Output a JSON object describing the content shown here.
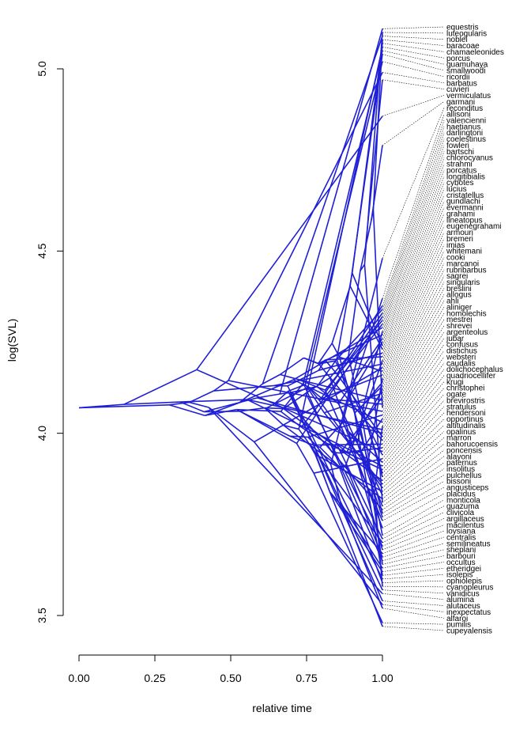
{
  "chart_data": {
    "type": "line",
    "subtype": "phenogram",
    "xlabel": "relative time",
    "ylabel": "log(SVL)",
    "xlim": [
      0,
      1
    ],
    "ylim": [
      3.5,
      5.1
    ],
    "x_ticks": [
      "0.00",
      "0.25",
      "0.50",
      "0.75",
      "1.00"
    ],
    "x_tick_values": [
      0,
      0.25,
      0.5,
      0.75,
      1.0
    ],
    "y_ticks": [
      "3.5",
      "4.0",
      "4.5",
      "5.0"
    ],
    "y_tick_values": [
      3.5,
      4.0,
      4.5,
      5.0
    ],
    "root_value": 4.07,
    "line_color": "#1f1fd6",
    "tip_labels": [
      "equestris",
      "luteogularis",
      "noblei",
      "baracoae",
      "chamaeleonides",
      "porcus",
      "guamuhaya",
      "smallwoodi",
      "ricordii",
      "barbatus",
      "cuvieri",
      "vermiculatus",
      "garmani",
      "reconditus",
      "allisoni",
      "valencienni",
      "haetianus",
      "darlingtoni",
      "coelestinus",
      "fowleri",
      "bartschi",
      "chlorocyanus",
      "strahmi",
      "porcatus",
      "longitibialis",
      "cybotes",
      "lucius",
      "cristatellus",
      "gundlachi",
      "evermanni",
      "grahami",
      "lineatopus",
      "eugenegrahami",
      "armouri",
      "bremeri",
      "imias",
      "whitemani",
      "cooki",
      "marcanoi",
      "rubribarbus",
      "sagrei",
      "singularis",
      "breslini",
      "allogus",
      "ahli",
      "aliniger",
      "homolechis",
      "mestrei",
      "shrevei",
      "argenteolus",
      "jubar",
      "confusus",
      "distichus",
      "websteri",
      "caudalis",
      "dolichocephalus",
      "quadriocellifer",
      "krugi",
      "christophei",
      "ogate",
      "brevirostris",
      "stratulus",
      "hendersoni",
      "opportinus",
      "altitudinalis",
      "opalinus",
      "marron",
      "bahorucoensis",
      "poncensis",
      "alayoni",
      "paternus",
      "insolitus",
      "pulchellus",
      "bissoni",
      "angusticeps",
      "placidus",
      "monticola",
      "guazuma",
      "clivicola",
      "argillaceus",
      "macilentus",
      "loysiana",
      "centralis",
      "semilineatus",
      "sheplani",
      "barbouri",
      "occultus",
      "etheridgei",
      "isolepis",
      "ophiolepis",
      "cyanopleurus",
      "vanidicus",
      "alumina",
      "alutaceus",
      "inexpectatus",
      "alfaroi",
      "pumilis",
      "cupeyalensis"
    ],
    "tip_values": [
      5.11,
      5.1,
      5.09,
      5.08,
      5.07,
      5.06,
      5.05,
      5.04,
      5.02,
      4.99,
      4.97,
      4.87,
      4.79,
      4.48,
      4.37,
      4.35,
      4.34,
      4.33,
      4.32,
      4.31,
      4.3,
      4.29,
      4.28,
      4.27,
      4.26,
      4.25,
      4.24,
      4.23,
      4.22,
      4.21,
      4.2,
      4.19,
      4.18,
      4.17,
      4.16,
      4.15,
      4.14,
      4.13,
      4.12,
      4.11,
      4.1,
      4.09,
      4.08,
      4.07,
      4.06,
      4.05,
      4.04,
      4.03,
      4.02,
      4.01,
      4.0,
      3.99,
      3.98,
      3.97,
      3.96,
      3.95,
      3.94,
      3.93,
      3.92,
      3.91,
      3.9,
      3.89,
      3.88,
      3.87,
      3.86,
      3.85,
      3.84,
      3.83,
      3.82,
      3.81,
      3.8,
      3.79,
      3.78,
      3.77,
      3.76,
      3.74,
      3.72,
      3.71,
      3.7,
      3.69,
      3.68,
      3.67,
      3.66,
      3.65,
      3.64,
      3.63,
      3.62,
      3.61,
      3.6,
      3.59,
      3.58,
      3.57,
      3.56,
      3.54,
      3.53,
      3.52,
      3.48,
      3.47
    ]
  }
}
